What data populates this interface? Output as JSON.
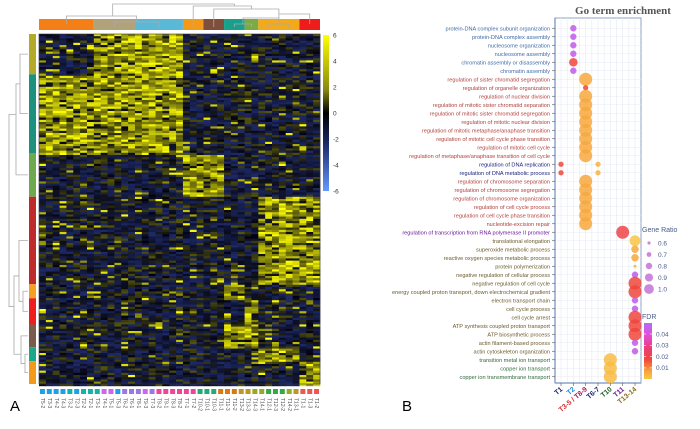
{
  "panels": {
    "a_label": "A",
    "b_label": "B"
  },
  "chart_data": [
    {
      "type": "heatmap",
      "panel": "A",
      "title": "",
      "colorbar": {
        "ticks": [
          6,
          4,
          2,
          0,
          -2,
          -4,
          -6
        ],
        "range": [
          -6,
          6
        ],
        "colors": {
          "high": "#ffff00",
          "mid": "#000000",
          "low": "#6699ff"
        }
      },
      "columns": [
        {
          "label": "T5-2",
          "color": "#1ea0e6"
        },
        {
          "label": "T3-3",
          "color": "#1ea0e6"
        },
        {
          "label": "T4-2",
          "color": "#1ea0e6"
        },
        {
          "label": "T4-3",
          "color": "#1ea0e6"
        },
        {
          "label": "T3-2",
          "color": "#12b3a8"
        },
        {
          "label": "T2-3",
          "color": "#1ea0e6"
        },
        {
          "label": "T2-2",
          "color": "#12b3a8"
        },
        {
          "label": "T2-1",
          "color": "#12b3a8"
        },
        {
          "label": "T3-1",
          "color": "#12b3a8"
        },
        {
          "label": "T4-1",
          "color": "#cc66ee"
        },
        {
          "label": "T5-1",
          "color": "#cc66ee"
        },
        {
          "label": "T5-3",
          "color": "#1ea0e6"
        },
        {
          "label": "T6-2",
          "color": "#9b77e6"
        },
        {
          "label": "T6-1",
          "color": "#9b77e6"
        },
        {
          "label": "T8-1",
          "color": "#9b77e6"
        },
        {
          "label": "T9-3",
          "color": "#cc66ee"
        },
        {
          "label": "T7-3",
          "color": "#9b77e6"
        },
        {
          "label": "T9-2",
          "color": "#ee4499"
        },
        {
          "label": "T9-1",
          "color": "#ee4499"
        },
        {
          "label": "T8-3",
          "color": "#ee4499"
        },
        {
          "label": "T8-2",
          "color": "#ee4499"
        },
        {
          "label": "T7-1",
          "color": "#ee4499"
        },
        {
          "label": "T7-2",
          "color": "#ee4499"
        },
        {
          "label": "T10-2",
          "color": "#22aa77"
        },
        {
          "label": "T10-1",
          "color": "#22aa77"
        },
        {
          "label": "T10-3",
          "color": "#22aa77"
        },
        {
          "label": "T11-1",
          "color": "#dd7711"
        },
        {
          "label": "T11-3",
          "color": "#dd7711"
        },
        {
          "label": "T11-2",
          "color": "#dd7711"
        },
        {
          "label": "T13-2",
          "color": "#bb9922"
        },
        {
          "label": "T13-3",
          "color": "#bb9922"
        },
        {
          "label": "T14-3",
          "color": "#99aa22"
        },
        {
          "label": "T14-1",
          "color": "#99aa22"
        },
        {
          "label": "T12-1",
          "color": "#33aa44"
        },
        {
          "label": "T12-3",
          "color": "#33aa44"
        },
        {
          "label": "T12-2",
          "color": "#33aa44"
        },
        {
          "label": "T14-2",
          "color": "#99aa22"
        },
        {
          "label": "T13-1",
          "color": "#bb9922"
        },
        {
          "label": "T1-1",
          "color": "#ee5555"
        },
        {
          "label": "T1-3",
          "color": "#ee5555"
        },
        {
          "label": "T1-2",
          "color": "#ee5555"
        }
      ],
      "column_clusters": [
        {
          "color": "#f47f17",
          "span": 8
        },
        {
          "color": "#b2a27a",
          "span": 6
        },
        {
          "color": "#5ab9d6",
          "span": 7
        },
        {
          "color": "#f49a1a",
          "span": 3
        },
        {
          "color": "#7f4f3e",
          "span": 3
        },
        {
          "color": "#17a08c",
          "span": 3
        },
        {
          "color": "#7cab45",
          "span": 2
        },
        {
          "color": "#f2a91b",
          "span": 6
        },
        {
          "color": "#ef1c1c",
          "span": 3
        }
      ],
      "row_clusters": [
        {
          "color": "#b4aa2a",
          "fraction": 0.115
        },
        {
          "color": "#1c917e",
          "fraction": 0.225
        },
        {
          "color": "#6ea84f",
          "fraction": 0.125
        },
        {
          "color": "#bf2a2a",
          "fraction": 0.25
        },
        {
          "color": "#f5a021",
          "fraction": 0.04
        },
        {
          "color": "#ef1e1e",
          "fraction": 0.075
        },
        {
          "color": "#7a5c4c",
          "fraction": 0.065
        },
        {
          "color": "#19a88a",
          "fraction": 0.04
        },
        {
          "color": "#f49a1a",
          "fraction": 0.065
        }
      ]
    },
    {
      "type": "scatter",
      "panel": "B",
      "title": "Go term enrichment",
      "x_categories": [
        {
          "label": "T1",
          "color": "#1a237e"
        },
        {
          "label": "T2",
          "color": "#1e88e5"
        },
        {
          "label": "T3-5 / T8-9",
          "color": "#d32f2f",
          "label_parts": [
            {
              "text": "T3-5",
              "color": "#d32f2f"
            },
            {
              "text": " / ",
              "color": "#d32f2f"
            },
            {
              "text": "T8-9",
              "color": "#ad1457"
            }
          ]
        },
        {
          "label": "T6-7",
          "color": "#1a237e"
        },
        {
          "label": "T10",
          "color": "#1b5e20"
        },
        {
          "label": "T11",
          "color": "#6a1b9a"
        },
        {
          "label": "T13-14",
          "color": "#8d6e1a"
        }
      ],
      "legend_size": {
        "title": "Gene Ratio",
        "values": [
          0.6,
          0.7,
          0.8,
          0.9,
          1.0
        ],
        "labels": [
          "0.6",
          "0.7",
          "0.8",
          "0.9",
          "1.0"
        ]
      },
      "legend_color": {
        "title": "FDR",
        "ticks": [
          "0.04",
          "0.03",
          "0.02",
          "0.01"
        ],
        "range": [
          0,
          0.05
        ]
      },
      "terms": [
        {
          "label": "protein-DNA complex subunit organization",
          "color": "#3f6aa8"
        },
        {
          "label": "protein-DNA complex assembly",
          "color": "#3f6aa8"
        },
        {
          "label": "nucleosome organization",
          "color": "#3f6aa8"
        },
        {
          "label": "nucleosome assembly",
          "color": "#3f6aa8"
        },
        {
          "label": "chromatin assembly or disassembly",
          "color": "#3f6aa8"
        },
        {
          "label": "chromatin assembly",
          "color": "#3f6aa8"
        },
        {
          "label": "regulation of sister chromatid segregation",
          "color": "#b0413e"
        },
        {
          "label": "regulation of organelle organization",
          "color": "#b0413e"
        },
        {
          "label": "regulation of nuclear division",
          "color": "#b0413e"
        },
        {
          "label": "regulation of mitotic sister chromatid separation",
          "color": "#b0413e"
        },
        {
          "label": "regulation of mitotic sister chromatid segregation",
          "color": "#b0413e"
        },
        {
          "label": "regulation of mitotic nuclear division",
          "color": "#b0413e"
        },
        {
          "label": "regulation of mitotic metaphase/anaphase transition",
          "color": "#b0413e"
        },
        {
          "label": "regulation of mitotic cell cycle phase transition",
          "color": "#b0413e"
        },
        {
          "label": "regulation of mitotic cell cycle",
          "color": "#b0413e"
        },
        {
          "label": "regulation of metaphase/anaphase transition of cell cycle",
          "color": "#b0413e"
        },
        {
          "label": "regulation of DNA replication",
          "color": "#1a237e"
        },
        {
          "label": "regulation of DNA metabolic process",
          "color": "#1a237e"
        },
        {
          "label": "regulation of chromosome separation",
          "color": "#b0413e"
        },
        {
          "label": "regulation of chromosome segregation",
          "color": "#b0413e"
        },
        {
          "label": "regulation of chromosome organization",
          "color": "#b0413e"
        },
        {
          "label": "regulation of cell cycle process",
          "color": "#b0413e"
        },
        {
          "label": "regulation of cell cycle phase transition",
          "color": "#b0413e"
        },
        {
          "label": "nucleotide-excision repair",
          "color": "#b0413e"
        },
        {
          "label": "regulation of transcription from RNA polymerase II promoter",
          "color": "#6a1b9a"
        },
        {
          "label": "translational elongation",
          "color": "#6b5a2a"
        },
        {
          "label": "superoxide metabolic process",
          "color": "#6b5a2a"
        },
        {
          "label": "reactive oxygen species metabolic process",
          "color": "#6b5a2a"
        },
        {
          "label": "protein polymerization",
          "color": "#6b5a2a"
        },
        {
          "label": "negative regulation of cellular process",
          "color": "#6b5a2a"
        },
        {
          "label": "negative regulation of cell cycle",
          "color": "#6b5a2a"
        },
        {
          "label": "energy coupled proton transport, down electrochemical gradient",
          "color": "#6b5a2a"
        },
        {
          "label": "electron transport chain",
          "color": "#6b5a2a"
        },
        {
          "label": "cell cycle process",
          "color": "#6b5a2a"
        },
        {
          "label": "cell cycle arrest",
          "color": "#6b5a2a"
        },
        {
          "label": "ATP synthesis coupled proton transport",
          "color": "#6b5a2a"
        },
        {
          "label": "ATP biosynthetic process",
          "color": "#6b5a2a"
        },
        {
          "label": "actin filament-based process",
          "color": "#6b5a2a"
        },
        {
          "label": "actin cytoskeleton organization",
          "color": "#6b5a2a"
        },
        {
          "label": "transition metal ion transport",
          "color": "#2e6b3a"
        },
        {
          "label": "copper ion transport",
          "color": "#2e6b3a"
        },
        {
          "label": "copper ion transmembrane transport",
          "color": "#2e6b3a"
        }
      ],
      "points": [
        {
          "term": 0,
          "x": 1,
          "ratio": 0.7,
          "fdr": 0.045
        },
        {
          "term": 1,
          "x": 1,
          "ratio": 0.7,
          "fdr": 0.045
        },
        {
          "term": 2,
          "x": 1,
          "ratio": 0.7,
          "fdr": 0.045
        },
        {
          "term": 3,
          "x": 1,
          "ratio": 0.7,
          "fdr": 0.045
        },
        {
          "term": 4,
          "x": 1,
          "ratio": 0.8,
          "fdr": 0.02
        },
        {
          "term": 5,
          "x": 1,
          "ratio": 0.7,
          "fdr": 0.045
        },
        {
          "term": 6,
          "x": 2,
          "ratio": 1.0,
          "fdr": 0.008
        },
        {
          "term": 7,
          "x": 2,
          "ratio": 0.65,
          "fdr": 0.02
        },
        {
          "term": 8,
          "x": 2,
          "ratio": 1.0,
          "fdr": 0.008
        },
        {
          "term": 9,
          "x": 2,
          "ratio": 1.0,
          "fdr": 0.008
        },
        {
          "term": 10,
          "x": 2,
          "ratio": 1.0,
          "fdr": 0.008
        },
        {
          "term": 11,
          "x": 2,
          "ratio": 1.0,
          "fdr": 0.008
        },
        {
          "term": 12,
          "x": 2,
          "ratio": 1.0,
          "fdr": 0.008
        },
        {
          "term": 13,
          "x": 2,
          "ratio": 1.0,
          "fdr": 0.008
        },
        {
          "term": 14,
          "x": 2,
          "ratio": 1.0,
          "fdr": 0.008
        },
        {
          "term": 15,
          "x": 2,
          "ratio": 1.0,
          "fdr": 0.008
        },
        {
          "term": 16,
          "x": 0,
          "ratio": 0.65,
          "fdr": 0.02
        },
        {
          "term": 16,
          "x": 3,
          "ratio": 0.65,
          "fdr": 0.005
        },
        {
          "term": 17,
          "x": 0,
          "ratio": 0.65,
          "fdr": 0.02
        },
        {
          "term": 17,
          "x": 3,
          "ratio": 0.65,
          "fdr": 0.005
        },
        {
          "term": 18,
          "x": 2,
          "ratio": 1.0,
          "fdr": 0.008
        },
        {
          "term": 19,
          "x": 2,
          "ratio": 1.0,
          "fdr": 0.008
        },
        {
          "term": 20,
          "x": 2,
          "ratio": 1.0,
          "fdr": 0.008
        },
        {
          "term": 21,
          "x": 2,
          "ratio": 1.0,
          "fdr": 0.008
        },
        {
          "term": 22,
          "x": 2,
          "ratio": 1.0,
          "fdr": 0.008
        },
        {
          "term": 23,
          "x": 2,
          "ratio": 1.0,
          "fdr": 0.008
        },
        {
          "term": 24,
          "x": 5,
          "ratio": 1.0,
          "fdr": 0.022
        },
        {
          "term": 25,
          "x": 6,
          "ratio": 0.9,
          "fdr": 0.001
        },
        {
          "term": 26,
          "x": 6,
          "ratio": 0.75,
          "fdr": 0.008
        },
        {
          "term": 27,
          "x": 6,
          "ratio": 0.75,
          "fdr": 0.008
        },
        {
          "term": 28,
          "x": 6,
          "ratio": 0.55,
          "fdr": 0.005
        },
        {
          "term": 29,
          "x": 6,
          "ratio": 0.7,
          "fdr": 0.045
        },
        {
          "term": 30,
          "x": 6,
          "ratio": 1.0,
          "fdr": 0.02
        },
        {
          "term": 31,
          "x": 6,
          "ratio": 1.0,
          "fdr": 0.02
        },
        {
          "term": 32,
          "x": 6,
          "ratio": 0.7,
          "fdr": 0.045
        },
        {
          "term": 33,
          "x": 6,
          "ratio": 0.7,
          "fdr": 0.045
        },
        {
          "term": 34,
          "x": 6,
          "ratio": 1.0,
          "fdr": 0.02
        },
        {
          "term": 35,
          "x": 6,
          "ratio": 1.0,
          "fdr": 0.02
        },
        {
          "term": 36,
          "x": 6,
          "ratio": 1.0,
          "fdr": 0.02
        },
        {
          "term": 37,
          "x": 6,
          "ratio": 0.7,
          "fdr": 0.045
        },
        {
          "term": 38,
          "x": 6,
          "ratio": 0.7,
          "fdr": 0.045
        },
        {
          "term": 39,
          "x": 4,
          "ratio": 1.0,
          "fdr": 0.003
        },
        {
          "term": 40,
          "x": 4,
          "ratio": 1.0,
          "fdr": 0.003
        },
        {
          "term": 41,
          "x": 4,
          "ratio": 1.0,
          "fdr": 0.003
        }
      ]
    }
  ]
}
